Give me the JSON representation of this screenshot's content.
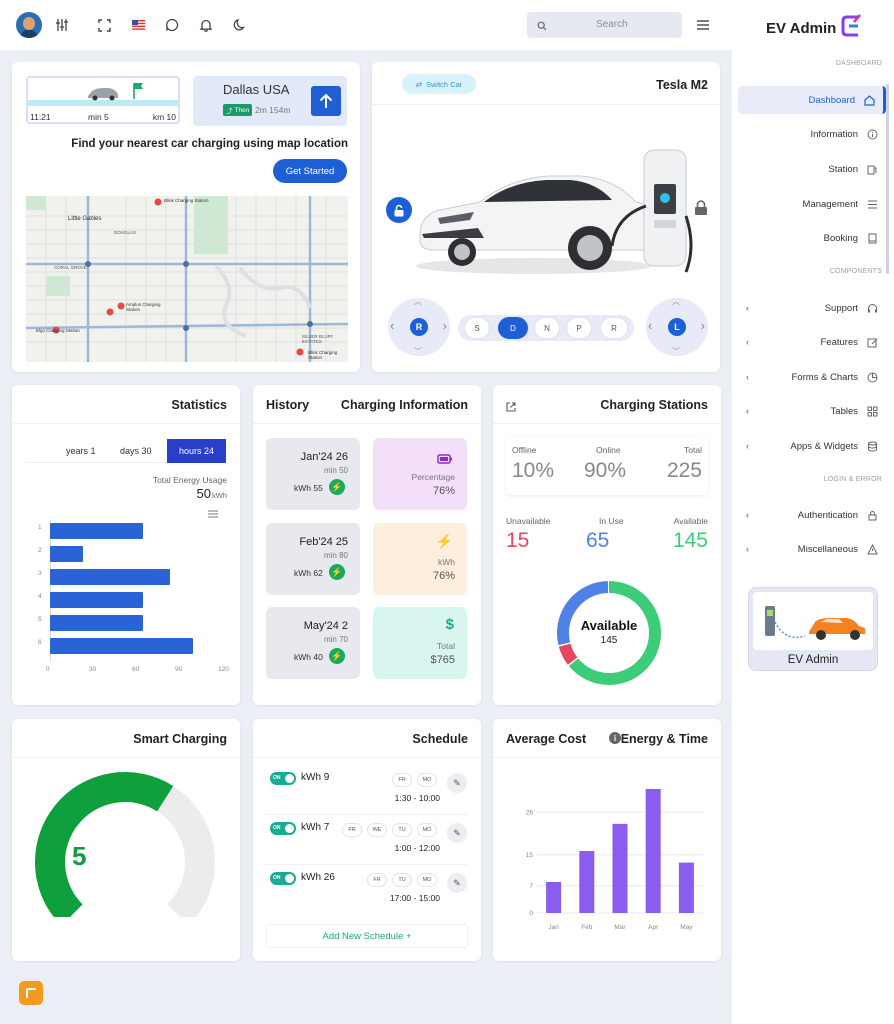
{
  "topbar": {
    "search_placeholder": "Search"
  },
  "sidebar": {
    "brand": "EV Admin",
    "sections": {
      "dashboard": "DASHBOARD",
      "components": "COMPONENTS",
      "login": "LOGIN & ERROR"
    },
    "items": [
      {
        "label": "Dashboard",
        "icon": "home-icon"
      },
      {
        "label": "Information",
        "icon": "info-icon"
      },
      {
        "label": "Station",
        "icon": "station-icon"
      },
      {
        "label": "Management",
        "icon": "list-icon"
      },
      {
        "label": "Booking",
        "icon": "book-icon"
      },
      {
        "label": "Support",
        "icon": "headset-icon"
      },
      {
        "label": "Features",
        "icon": "edit-icon"
      },
      {
        "label": "Forms & Charts",
        "icon": "pie-icon"
      },
      {
        "label": "Tables",
        "icon": "grid-icon"
      },
      {
        "label": "Apps & Widgets",
        "icon": "db-icon"
      },
      {
        "label": "Authentication",
        "icon": "lock-icon"
      },
      {
        "label": "Miscellaneous",
        "icon": "warning-icon"
      }
    ],
    "promo_label": "EV Admin"
  },
  "nav": {
    "time": "11:21",
    "min": "min 5",
    "km": "km 10",
    "city": "Dallas USA",
    "then": "Then",
    "dist": "2m 154m",
    "headline": "Find your nearest car charging using map location",
    "cta": "Get Started"
  },
  "map": {
    "labels": [
      "Little Gables",
      "DOUGLAS",
      "CORAL GROVE",
      "Blink Charging Station",
      "Amplus Charging Station",
      "Elgo Charging Station",
      "SILVER BLUFF ESTATES",
      "Blink Charging Station"
    ]
  },
  "car": {
    "switch": "Switch Car",
    "name": "Tesla M2",
    "gears": [
      "S",
      "D",
      "N",
      "P",
      "R"
    ],
    "active_gear": "D",
    "left_knob": "R",
    "right_knob": "L"
  },
  "statistics": {
    "title": "Statistics",
    "tabs": [
      "years 1",
      "days 30",
      "hours 24"
    ],
    "active_tab": "hours 24",
    "usage_label": "Total Energy Usage",
    "usage_value": "50",
    "usage_unit": "kWh"
  },
  "chart_data": [
    {
      "type": "bar",
      "orientation": "horizontal",
      "categories": [
        "1",
        "2",
        "3",
        "4",
        "5",
        "6"
      ],
      "values": [
        65,
        23,
        84,
        65,
        65,
        100
      ],
      "xticks": [
        "0",
        "30",
        "60",
        "90",
        "120"
      ],
      "xlim": [
        0,
        120
      ]
    },
    {
      "type": "bar",
      "categories": [
        "Jan",
        "Feb",
        "Mar",
        "Apr",
        "May"
      ],
      "values": [
        8,
        16,
        23,
        32,
        13
      ],
      "yticks": [
        "0",
        "7",
        "15",
        "26"
      ],
      "ylim": [
        0,
        32
      ]
    }
  ],
  "history": {
    "title1": "History",
    "title2": "Charging Information",
    "rows": [
      {
        "date": "Jan'24 26",
        "min": "min 50",
        "kwh": "kWh 55",
        "info_label": "Percentage",
        "info_value": "76%"
      },
      {
        "date": "Feb'24 25",
        "min": "min 80",
        "kwh": "kWh 62",
        "info_label": "kWh",
        "info_value": "76%"
      },
      {
        "date": "May'24 2",
        "min": "min 70",
        "kwh": "kWh 40",
        "info_label": "Total",
        "info_value": "$765"
      }
    ]
  },
  "stations": {
    "title": "Charging Stations",
    "offline_label": "Offline",
    "offline": "10%",
    "online_label": "Online",
    "online": "90%",
    "total_label": "Total",
    "total": "225",
    "unavail_label": "Unavailable",
    "unavail": "15",
    "inuse_label": "In Use",
    "inuse": "65",
    "avail_label": "Available",
    "avail": "145",
    "donut_label": "Available",
    "donut_value": "145",
    "colors": {
      "unavail": "#e84560",
      "inuse": "#4f82e6",
      "avail": "#3ccc7a"
    }
  },
  "smart": {
    "title": "Smart Charging",
    "value": "5",
    "level": 0.62
  },
  "schedule": {
    "title": "Schedule",
    "items": [
      {
        "on": "ON",
        "kwh": "kWh 9",
        "days": [
          "FR",
          "MO"
        ],
        "time": "1:30 - 10:00"
      },
      {
        "on": "ON",
        "kwh": "kWh 7",
        "days": [
          "FR",
          "WE",
          "TU",
          "MO"
        ],
        "time": "1:00 - 12:00"
      },
      {
        "on": "ON",
        "kwh": "kWh 26",
        "days": [
          "FR",
          "TU",
          "MO"
        ],
        "time": "17:00 - 15:00"
      }
    ],
    "add": "Add New Schedule +"
  },
  "cost": {
    "title1": "Average Cost",
    "title2": "Energy & Time"
  }
}
